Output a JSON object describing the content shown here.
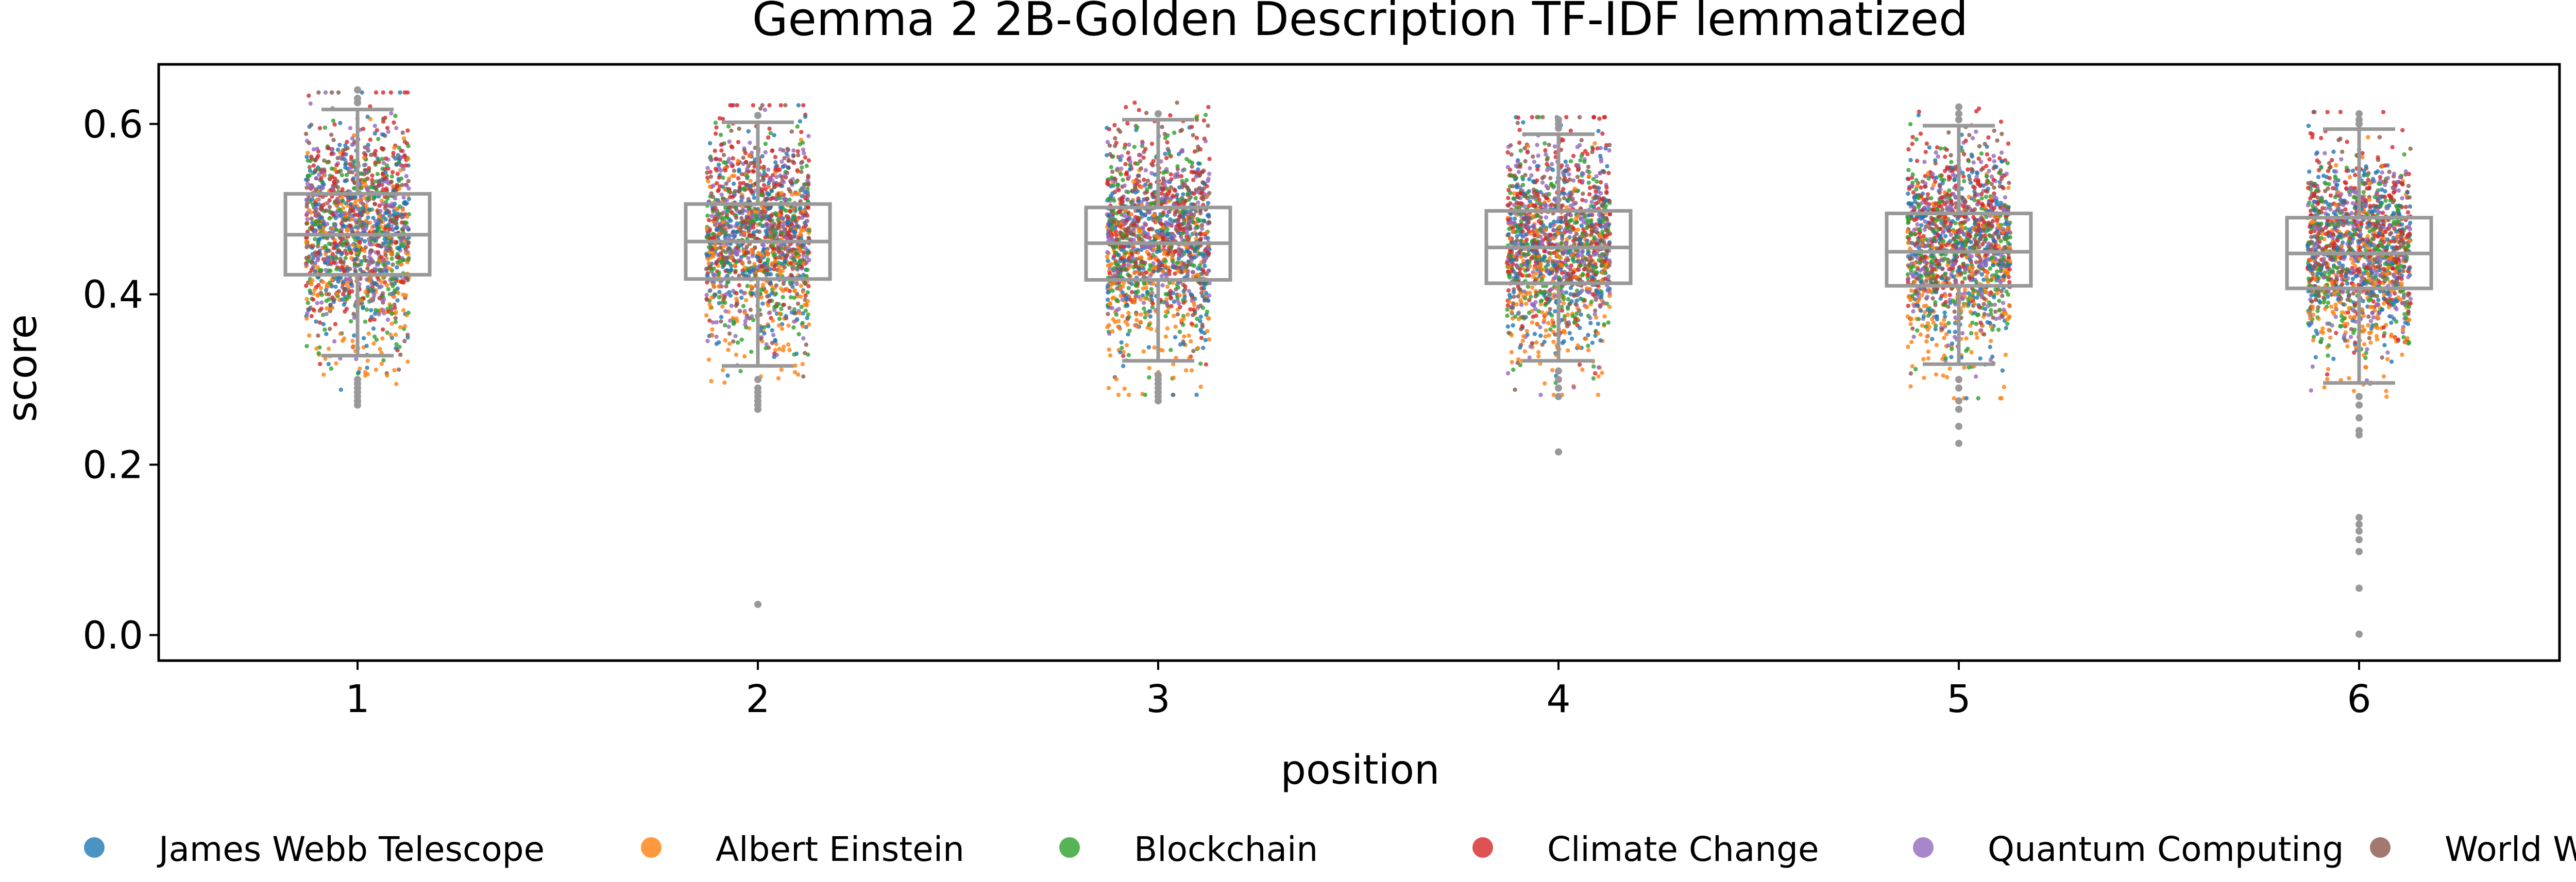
{
  "chart_data": {
    "type": "box+strip",
    "title": "Gemma 2 2B-Golden Description TF-IDF lemmatized",
    "xlabel": "position",
    "ylabel": "score",
    "categories": [
      "1",
      "2",
      "3",
      "4",
      "5",
      "6"
    ],
    "ylim": [
      -0.03,
      0.67
    ],
    "yticks": [
      0.0,
      0.2,
      0.4,
      0.6
    ],
    "ytick_labels": [
      "0.0",
      "0.2",
      "0.4",
      "0.6"
    ],
    "grid": false,
    "legend_position": "bottom",
    "boxes": [
      {
        "position": "1",
        "whisker_low": 0.328,
        "q1": 0.423,
        "median": 0.47,
        "q3": 0.518,
        "whisker_high": 0.617,
        "outliers": [
          0.3,
          0.295,
          0.29,
          0.285,
          0.28,
          0.275,
          0.27,
          0.625,
          0.63,
          0.64
        ]
      },
      {
        "position": "2",
        "whisker_low": 0.316,
        "q1": 0.418,
        "median": 0.462,
        "q3": 0.506,
        "whisker_high": 0.602,
        "outliers": [
          0.3,
          0.29,
          0.285,
          0.28,
          0.275,
          0.27,
          0.265,
          0.61,
          0.036
        ]
      },
      {
        "position": "3",
        "whisker_low": 0.322,
        "q1": 0.417,
        "median": 0.46,
        "q3": 0.502,
        "whisker_high": 0.605,
        "outliers": [
          0.305,
          0.3,
          0.295,
          0.29,
          0.285,
          0.28,
          0.275,
          0.612
        ]
      },
      {
        "position": "4",
        "whisker_low": 0.322,
        "q1": 0.413,
        "median": 0.455,
        "q3": 0.498,
        "whisker_high": 0.588,
        "outliers": [
          0.31,
          0.3,
          0.29,
          0.28,
          0.595,
          0.6,
          0.605,
          0.215
        ]
      },
      {
        "position": "5",
        "whisker_low": 0.318,
        "q1": 0.41,
        "median": 0.45,
        "q3": 0.495,
        "whisker_high": 0.598,
        "outliers": [
          0.3,
          0.29,
          0.275,
          0.265,
          0.245,
          0.225,
          0.605,
          0.612,
          0.62
        ]
      },
      {
        "position": "6",
        "whisker_low": 0.296,
        "q1": 0.407,
        "median": 0.448,
        "q3": 0.49,
        "whisker_high": 0.594,
        "outliers": [
          0.28,
          0.27,
          0.255,
          0.24,
          0.235,
          0.138,
          0.13,
          0.122,
          0.112,
          0.098,
          0.055,
          0.001,
          0.6,
          0.605,
          0.612
        ]
      }
    ],
    "series": [
      {
        "name": "James Webb Telescope",
        "color": "#1f77b4"
      },
      {
        "name": "Albert Einstein",
        "color": "#ff7f0e"
      },
      {
        "name": "Blockchain",
        "color": "#2ca02c"
      },
      {
        "name": "Climate Change",
        "color": "#d62728"
      },
      {
        "name": "Quantum Computing",
        "color": "#9467bd"
      },
      {
        "name": "World War II",
        "color": "#8c564b"
      }
    ],
    "strip_points_per_position": 1500
  }
}
